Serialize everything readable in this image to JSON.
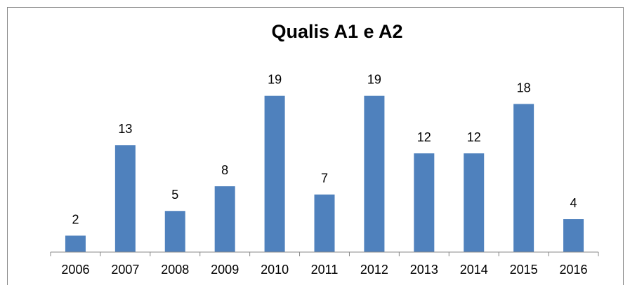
{
  "chart_data": {
    "type": "bar",
    "title": "Qualis A1 e A2",
    "categories": [
      "2006",
      "2007",
      "2008",
      "2009",
      "2010",
      "2011",
      "2012",
      "2013",
      "2014",
      "2015",
      "2016"
    ],
    "values": [
      2,
      13,
      5,
      8,
      19,
      7,
      19,
      12,
      12,
      18,
      4
    ],
    "color": "#4f81bd"
  }
}
